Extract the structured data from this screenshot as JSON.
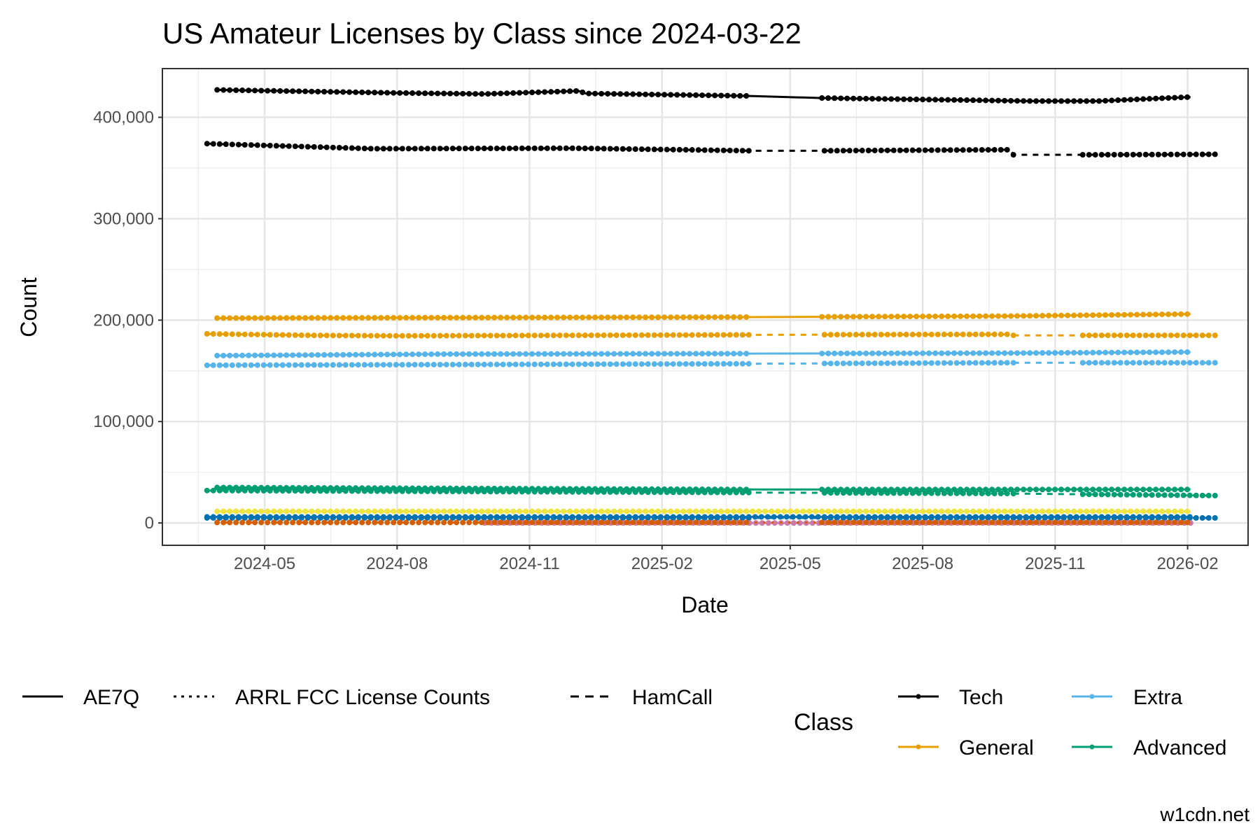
{
  "chart_data": {
    "type": "line",
    "title": "US Amateur Licenses by Class since 2024-03-22",
    "xlabel": "Date",
    "ylabel": "Count",
    "ylim": [
      -22000,
      448000
    ],
    "xlim": [
      "2024-02-20",
      "2026-03-15"
    ],
    "yticks": [
      0,
      100000,
      200000,
      300000,
      400000
    ],
    "ytick_labels": [
      "0",
      "100,000",
      "200,000",
      "300,000",
      "400,000"
    ],
    "xticks": [
      "2024-05-01",
      "2024-08-01",
      "2024-11-01",
      "2025-02-01",
      "2025-05-01",
      "2025-08-01",
      "2025-11-01",
      "2026-02-01"
    ],
    "xtick_labels": [
      "2024-05",
      "2024-08",
      "2024-11",
      "2025-02",
      "2025-05",
      "2025-08",
      "2025-11",
      "2026-02"
    ],
    "grid": true,
    "source_legend": {
      "items": [
        {
          "label": "AE7Q",
          "linetype": "solid"
        },
        {
          "label": "ARRL FCC License Counts",
          "linetype": "dotted"
        },
        {
          "label": "HamCall",
          "linetype": "dashed"
        }
      ],
      "placement": "bottom-left"
    },
    "class_legend": {
      "title": "Class",
      "items": [
        {
          "label": "Tech",
          "color": "#000000"
        },
        {
          "label": "General",
          "color": "#E69F00"
        },
        {
          "label": "Extra",
          "color": "#56B4E9"
        },
        {
          "label": "Advanced",
          "color": "#009E73"
        }
      ],
      "placement": "bottom-right"
    },
    "series": [
      {
        "class": "Tech",
        "source": "AE7Q",
        "color": "#000000",
        "dash": "",
        "points": [
          [
            "2024-03-29",
            427000
          ],
          [
            "2024-08-01",
            424000
          ],
          [
            "2024-10-01",
            423000
          ],
          [
            "2024-12-05",
            426000
          ],
          [
            "2024-12-10",
            423500
          ],
          [
            "2025-04-03",
            421000
          ],
          [
            "2025-05-22",
            419000
          ],
          [
            "2025-10-15",
            416000
          ],
          [
            "2025-12-01",
            416000
          ],
          [
            "2026-02-03",
            420000
          ]
        ],
        "gaps": [
          [
            "2025-04-03",
            "2025-05-22"
          ]
        ]
      },
      {
        "class": "Tech",
        "source": "HamCall",
        "color": "#000000",
        "dash": "8,8",
        "points": [
          [
            "2024-03-22",
            374000
          ],
          [
            "2024-07-15",
            369000
          ],
          [
            "2024-12-01",
            369500
          ],
          [
            "2025-04-03",
            367000
          ],
          [
            "2025-05-22",
            367000
          ],
          [
            "2025-10-01",
            368000
          ],
          [
            "2025-10-03",
            363000
          ],
          [
            "2025-11-17",
            363000
          ],
          [
            "2026-02-20",
            363500
          ]
        ],
        "gaps": [
          [
            "2025-04-03",
            "2025-05-22"
          ],
          [
            "2025-10-03",
            "2025-11-17"
          ]
        ]
      },
      {
        "class": "General",
        "source": "AE7Q",
        "color": "#E69F00",
        "dash": "",
        "points": [
          [
            "2024-03-29",
            202000
          ],
          [
            "2025-04-03",
            203000
          ],
          [
            "2025-10-01",
            204000
          ],
          [
            "2026-02-03",
            206000
          ]
        ],
        "gaps": [
          [
            "2025-04-03",
            "2025-05-22"
          ]
        ]
      },
      {
        "class": "General",
        "source": "HamCall",
        "color": "#E69F00",
        "dash": "8,8",
        "points": [
          [
            "2024-03-22",
            186500
          ],
          [
            "2024-06-01",
            185000
          ],
          [
            "2024-08-01",
            184500
          ],
          [
            "2025-04-03",
            185500
          ],
          [
            "2025-10-01",
            186000
          ],
          [
            "2025-10-03",
            185000
          ],
          [
            "2026-02-20",
            185000
          ]
        ],
        "gaps": [
          [
            "2025-04-03",
            "2025-05-22"
          ],
          [
            "2025-10-03",
            "2025-11-17"
          ]
        ]
      },
      {
        "class": "Extra",
        "source": "AE7Q",
        "color": "#56B4E9",
        "dash": "",
        "points": [
          [
            "2024-03-29",
            165000
          ],
          [
            "2024-09-01",
            166500
          ],
          [
            "2025-04-03",
            167000
          ],
          [
            "2025-10-01",
            167500
          ],
          [
            "2026-02-03",
            168500
          ]
        ],
        "gaps": [
          [
            "2025-04-03",
            "2025-05-22"
          ]
        ]
      },
      {
        "class": "Extra",
        "source": "HamCall",
        "color": "#56B4E9",
        "dash": "8,8",
        "points": [
          [
            "2024-03-22",
            155500
          ],
          [
            "2025-04-03",
            157000
          ],
          [
            "2025-10-01",
            158000
          ],
          [
            "2026-02-20",
            158000
          ]
        ],
        "gaps": [
          [
            "2025-04-03",
            "2025-05-22"
          ],
          [
            "2025-10-03",
            "2025-11-17"
          ]
        ]
      },
      {
        "class": "Advanced",
        "source": "AE7Q",
        "color": "#009E73",
        "dash": "",
        "points": [
          [
            "2024-03-29",
            35000
          ],
          [
            "2025-04-03",
            33000
          ],
          [
            "2026-02-03",
            33000
          ]
        ],
        "gaps": [
          [
            "2025-04-03",
            "2025-05-22"
          ]
        ]
      },
      {
        "class": "Advanced",
        "source": "HamCall",
        "color": "#009E73",
        "dash": "8,8",
        "points": [
          [
            "2024-03-22",
            32000
          ],
          [
            "2025-04-03",
            30000
          ],
          [
            "2025-10-01",
            29000
          ],
          [
            "2026-02-20",
            27000
          ]
        ],
        "gaps": [
          [
            "2025-04-03",
            "2025-05-22"
          ],
          [
            "2025-10-03",
            "2025-11-17"
          ]
        ]
      },
      {
        "class": null,
        "source": "AE7Q",
        "color": "#F0E442",
        "dash": "",
        "points": [
          [
            "2024-03-29",
            11500
          ],
          [
            "2026-02-03",
            11500
          ]
        ],
        "gaps": []
      },
      {
        "class": null,
        "source": "AE7Q",
        "color": "#0072B2",
        "dash": "",
        "points": [
          [
            "2024-03-22",
            6000
          ],
          [
            "2026-02-03",
            6000
          ]
        ],
        "gaps": []
      },
      {
        "class": null,
        "source": "HamCall",
        "color": "#0072B2",
        "dash": "8,8",
        "points": [
          [
            "2024-03-22",
            5000
          ],
          [
            "2026-02-20",
            5000
          ]
        ],
        "gaps": [
          [
            "2025-04-03",
            "2025-05-22"
          ]
        ]
      },
      {
        "class": null,
        "source": "AE7Q",
        "color": "#CC79A7",
        "dash": "",
        "points": [
          [
            "2024-10-01",
            0
          ],
          [
            "2026-02-03",
            0
          ]
        ],
        "gaps": []
      },
      {
        "class": null,
        "source": "HamCall",
        "color": "#D55E00",
        "dash": "3,9",
        "points": [
          [
            "2024-03-29",
            500
          ],
          [
            "2026-02-03",
            500
          ]
        ],
        "gaps": [
          [
            "2025-04-03",
            "2025-05-22"
          ]
        ]
      }
    ]
  },
  "watermark": "w1cdn.net"
}
